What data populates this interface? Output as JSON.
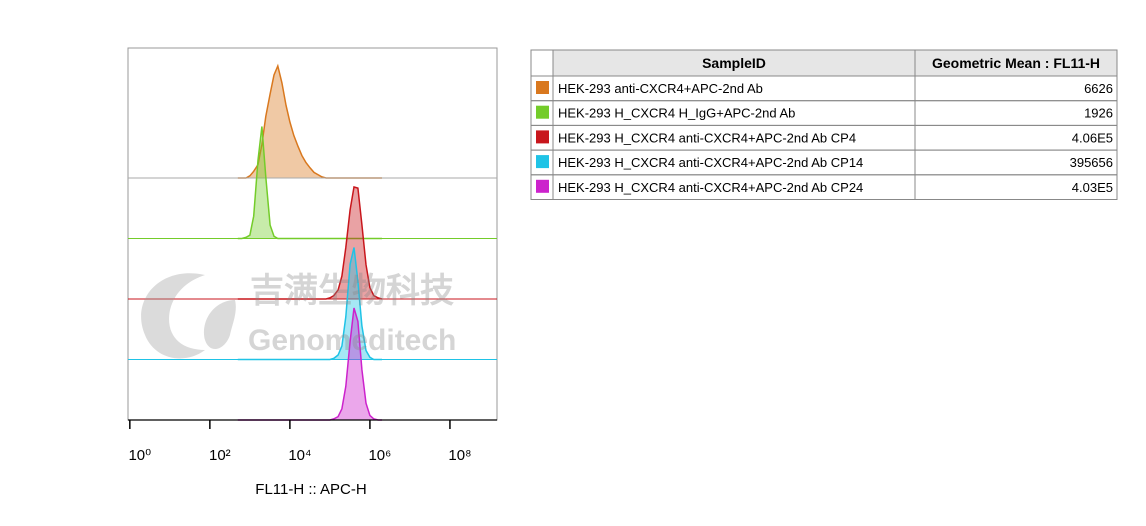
{
  "chart_data": {
    "type": "offset-histogram",
    "x_label": "FL11-H :: APC-H",
    "xscale": "log",
    "xlim": [
      0.9,
      1500000000
    ],
    "xticks": [
      {
        "value": 1,
        "label": "10⁰"
      },
      {
        "value": 100,
        "label": "10²"
      },
      {
        "value": 10000,
        "label": "10⁴"
      },
      {
        "value": 1000000,
        "label": "10⁶"
      },
      {
        "value": 100000000,
        "label": "10⁸"
      }
    ],
    "x": [
      500,
      630,
      800,
      1000,
      1250,
      1600,
      2000,
      2500,
      3200,
      4000,
      5000,
      6300,
      8000,
      10000,
      12500,
      16000,
      20000,
      25000,
      32000,
      40000,
      50000,
      63000,
      80000,
      100000,
      125000,
      160000,
      200000,
      250000,
      320000,
      400000,
      500000,
      630000,
      800000,
      1000000,
      1250000,
      1600000,
      2000000
    ],
    "series": [
      {
        "name": "HEK-293 anti-CXCR4+APC-2nd Ab",
        "color": "#d9781e",
        "values": [
          0,
          0,
          0,
          2,
          6,
          12,
          30,
          55,
          75,
          92,
          100,
          85,
          65,
          50,
          38,
          28,
          20,
          14,
          9,
          5,
          3,
          1,
          0,
          0,
          0,
          0,
          0,
          0,
          0,
          0,
          0,
          0,
          0,
          0,
          0,
          0,
          0
        ]
      },
      {
        "name": "HEK-293 H_CXCR4 H_IgG+APC-2nd Ab",
        "color": "#74cc2a",
        "values": [
          0,
          0,
          1,
          3,
          20,
          70,
          100,
          55,
          12,
          2,
          0,
          0,
          0,
          0,
          0,
          0,
          0,
          0,
          0,
          0,
          0,
          0,
          0,
          0,
          0,
          0,
          0,
          0,
          0,
          0,
          0,
          0,
          0,
          0,
          0,
          0,
          0
        ]
      },
      {
        "name": "HEK-293 H_CXCR4 anti-CXCR4+APC-2nd Ab CP4",
        "color": "#c8161c",
        "values": [
          0,
          0,
          0,
          0,
          0,
          0,
          0,
          0,
          0,
          0,
          0,
          0,
          0,
          0,
          0,
          0,
          0,
          0,
          0,
          0,
          0,
          0,
          0,
          1,
          3,
          8,
          20,
          45,
          78,
          98,
          97,
          65,
          30,
          10,
          3,
          1,
          0
        ]
      },
      {
        "name": "HEK-293 H_CXCR4 anti-CXCR4+APC-2nd Ab CP14",
        "color": "#1fc3e6",
        "values": [
          0,
          0,
          0,
          0,
          0,
          0,
          0,
          0,
          0,
          0,
          0,
          0,
          0,
          0,
          0,
          0,
          0,
          0,
          0,
          0,
          0,
          0,
          0,
          0,
          1,
          4,
          12,
          38,
          85,
          100,
          70,
          30,
          8,
          2,
          0,
          0,
          0
        ]
      },
      {
        "name": "HEK-293 H_CXCR4 anti-CXCR4+APC-2nd Ab CP24",
        "color": "#cc22cc",
        "values": [
          0,
          0,
          0,
          0,
          0,
          0,
          0,
          0,
          0,
          0,
          0,
          0,
          0,
          0,
          0,
          0,
          0,
          0,
          0,
          0,
          0,
          0,
          0,
          0,
          1,
          3,
          10,
          30,
          70,
          100,
          88,
          45,
          15,
          4,
          1,
          0,
          0
        ]
      }
    ]
  },
  "table": {
    "headers": [
      "SampleID",
      "Geometric Mean : FL11-H"
    ],
    "values": [
      "6626",
      "1926",
      "4.06E5",
      "395656",
      "4.03E5"
    ]
  },
  "watermark": {
    "chinese": "吉满生物科技",
    "english": "Genomeditech"
  }
}
